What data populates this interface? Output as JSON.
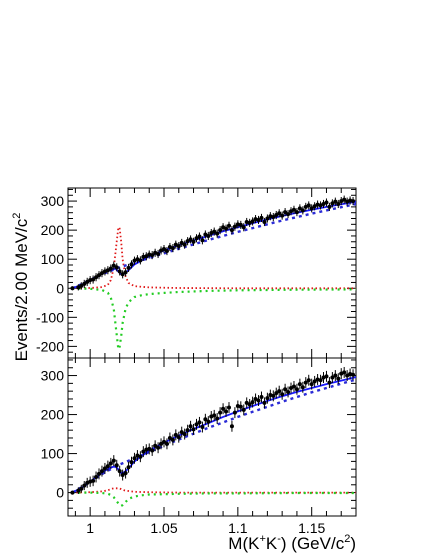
{
  "figure": {
    "ylabel": "Events/2.00 MeV/c",
    "ylabel_sup": "2",
    "xlabel_prefix": "M(K",
    "xlabel_sup1": "+",
    "xlabel_mid": "K",
    "xlabel_sup2": "-",
    "xlabel_suffix": ") (GeV/c",
    "xlabel_sup3": "2",
    "xlabel_close": ")"
  },
  "chart_data": [
    {
      "type": "scatter",
      "panel": "top",
      "xlim": [
        0.985,
        1.18
      ],
      "ylim": [
        -240,
        345
      ],
      "yticks": [
        -200,
        -100,
        0,
        100,
        200,
        300
      ],
      "xticks": [
        1.0,
        1.05,
        1.1,
        1.15
      ],
      "xtick_labels": [],
      "colors": {
        "data": "#000000",
        "total": "#1a1aff",
        "background": "#2b2bd6",
        "signal": "#e01818",
        "interference": "#22cc22"
      },
      "series": [
        {
          "kind": "data",
          "x": [
            0.988,
            0.992,
            0.994,
            0.996,
            0.998,
            1.0,
            1.002,
            1.004,
            1.006,
            1.008,
            1.01,
            1.012,
            1.014,
            1.016,
            1.018,
            1.02,
            1.022,
            1.024,
            1.026,
            1.028,
            1.03,
            1.032,
            1.034,
            1.036,
            1.038,
            1.04,
            1.042,
            1.044,
            1.046,
            1.048,
            1.05,
            1.052,
            1.054,
            1.056,
            1.058,
            1.06,
            1.062,
            1.064,
            1.066,
            1.068,
            1.07,
            1.072,
            1.074,
            1.076,
            1.078,
            1.08,
            1.082,
            1.084,
            1.086,
            1.088,
            1.09,
            1.092,
            1.094,
            1.096,
            1.098,
            1.1,
            1.102,
            1.104,
            1.106,
            1.108,
            1.11,
            1.112,
            1.114,
            1.116,
            1.118,
            1.12,
            1.122,
            1.124,
            1.126,
            1.128,
            1.13,
            1.132,
            1.134,
            1.136,
            1.138,
            1.14,
            1.142,
            1.144,
            1.146,
            1.148,
            1.15,
            1.152,
            1.154,
            1.156,
            1.158,
            1.16,
            1.162,
            1.164,
            1.166,
            1.168,
            1.17,
            1.172,
            1.174,
            1.176,
            1.178
          ],
          "y": [
            0,
            3,
            8,
            15,
            22,
            28,
            30,
            38,
            45,
            52,
            58,
            62,
            68,
            78,
            72,
            58,
            48,
            55,
            70,
            82,
            95,
            100,
            96,
            108,
            110,
            116,
            114,
            122,
            118,
            130,
            135,
            128,
            142,
            138,
            150,
            145,
            156,
            150,
            162,
            168,
            160,
            172,
            178,
            165,
            185,
            180,
            190,
            195,
            188,
            200,
            210,
            205,
            215,
            200,
            212,
            220,
            218,
            210,
            228,
            225,
            230,
            238,
            235,
            242,
            228,
            240,
            248,
            245,
            252,
            258,
            250,
            262,
            255,
            265,
            270,
            262,
            275,
            268,
            280,
            285,
            275,
            282,
            288,
            285,
            290,
            295,
            280,
            292,
            298,
            290,
            300,
            305,
            298,
            302,
            300
          ],
          "err": 14
        },
        {
          "kind": "total_fit",
          "x": [
            0.988,
            0.995,
            1.0,
            1.005,
            1.01,
            1.014,
            1.017,
            1.019,
            1.021,
            1.023,
            1.026,
            1.03,
            1.04,
            1.05,
            1.06,
            1.07,
            1.08,
            1.09,
            1.1,
            1.11,
            1.12,
            1.13,
            1.14,
            1.15,
            1.16,
            1.17,
            1.18
          ],
          "y": [
            0,
            14,
            28,
            42,
            55,
            63,
            68,
            58,
            48,
            50,
            62,
            82,
            110,
            130,
            148,
            165,
            180,
            196,
            210,
            224,
            237,
            249,
            260,
            270,
            280,
            289,
            298
          ]
        },
        {
          "kind": "background_fit",
          "x": [
            0.988,
            0.995,
            1.0,
            1.005,
            1.01,
            1.015,
            1.02,
            1.025,
            1.03,
            1.04,
            1.05,
            1.06,
            1.07,
            1.08,
            1.09,
            1.1,
            1.11,
            1.12,
            1.13,
            1.14,
            1.15,
            1.16,
            1.17,
            1.18
          ],
          "y": [
            0,
            16,
            28,
            40,
            52,
            62,
            72,
            80,
            88,
            104,
            120,
            136,
            151,
            166,
            180,
            194,
            207,
            220,
            233,
            245,
            257,
            268,
            279,
            290
          ]
        },
        {
          "kind": "signal",
          "x": [
            0.988,
            1.0,
            1.008,
            1.012,
            1.014,
            1.016,
            1.018,
            1.019,
            1.0195,
            1.02,
            1.021,
            1.022,
            1.024,
            1.026,
            1.03,
            1.04,
            1.06,
            1.1,
            1.18
          ],
          "y": [
            0,
            1,
            4,
            12,
            28,
            70,
            160,
            205,
            210,
            205,
            160,
            100,
            40,
            18,
            7,
            3,
            1,
            0,
            0
          ]
        },
        {
          "kind": "interference",
          "x": [
            0.988,
            1.0,
            1.008,
            1.012,
            1.014,
            1.016,
            1.018,
            1.019,
            1.0195,
            1.02,
            1.021,
            1.022,
            1.024,
            1.026,
            1.03,
            1.035,
            1.04,
            1.05,
            1.06,
            1.08,
            1.1,
            1.14,
            1.18
          ],
          "y": [
            0,
            -2,
            -6,
            -16,
            -32,
            -72,
            -160,
            -205,
            -210,
            -200,
            -165,
            -120,
            -70,
            -48,
            -30,
            -24,
            -20,
            -16,
            -13,
            -9,
            -7,
            -5,
            -4
          ]
        }
      ]
    },
    {
      "type": "scatter",
      "panel": "bottom",
      "xlim": [
        0.985,
        1.18
      ],
      "ylim": [
        -60,
        345
      ],
      "yticks": [
        0,
        100,
        200,
        300
      ],
      "xticks": [
        1.0,
        1.05,
        1.1,
        1.15
      ],
      "xtick_labels": [
        "1",
        "1.05",
        "1.1",
        "1.15"
      ],
      "colors": {
        "data": "#000000",
        "total": "#1a1aff",
        "background": "#2b2bd6",
        "signal": "#e01818",
        "interference": "#22cc22"
      },
      "series": [
        {
          "kind": "data",
          "x": [
            0.988,
            0.992,
            0.994,
            0.996,
            0.998,
            1.0,
            1.002,
            1.004,
            1.006,
            1.008,
            1.01,
            1.012,
            1.014,
            1.016,
            1.018,
            1.02,
            1.022,
            1.024,
            1.026,
            1.028,
            1.03,
            1.032,
            1.034,
            1.036,
            1.038,
            1.04,
            1.042,
            1.044,
            1.046,
            1.048,
            1.05,
            1.052,
            1.054,
            1.056,
            1.058,
            1.06,
            1.062,
            1.064,
            1.066,
            1.068,
            1.07,
            1.072,
            1.074,
            1.076,
            1.078,
            1.08,
            1.082,
            1.084,
            1.086,
            1.088,
            1.09,
            1.092,
            1.094,
            1.096,
            1.098,
            1.1,
            1.102,
            1.104,
            1.106,
            1.108,
            1.11,
            1.112,
            1.114,
            1.116,
            1.118,
            1.12,
            1.122,
            1.124,
            1.126,
            1.128,
            1.13,
            1.132,
            1.134,
            1.136,
            1.138,
            1.14,
            1.142,
            1.144,
            1.146,
            1.148,
            1.15,
            1.152,
            1.154,
            1.156,
            1.158,
            1.16,
            1.162,
            1.164,
            1.166,
            1.168,
            1.17,
            1.172,
            1.174,
            1.176,
            1.178
          ],
          "y": [
            0,
            5,
            10,
            18,
            25,
            28,
            30,
            40,
            48,
            55,
            62,
            68,
            75,
            82,
            70,
            55,
            45,
            50,
            65,
            78,
            88,
            95,
            92,
            105,
            110,
            112,
            108,
            120,
            115,
            125,
            130,
            125,
            140,
            135,
            148,
            142,
            155,
            150,
            160,
            170,
            162,
            175,
            180,
            168,
            188,
            182,
            195,
            198,
            190,
            205,
            215,
            208,
            218,
            170,
            205,
            222,
            220,
            212,
            230,
            226,
            232,
            240,
            236,
            245,
            230,
            242,
            250,
            248,
            255,
            260,
            252,
            265,
            258,
            268,
            272,
            265,
            278,
            270,
            282,
            288,
            278,
            285,
            290,
            288,
            295,
            298,
            282,
            295,
            300,
            292,
            305,
            308,
            300,
            304,
            302
          ],
          "err": 14
        },
        {
          "kind": "total_fit",
          "x": [
            0.988,
            0.995,
            1.0,
            1.005,
            1.01,
            1.014,
            1.017,
            1.019,
            1.021,
            1.023,
            1.026,
            1.03,
            1.04,
            1.05,
            1.06,
            1.07,
            1.08,
            1.09,
            1.1,
            1.11,
            1.12,
            1.13,
            1.14,
            1.15,
            1.16,
            1.17,
            1.18
          ],
          "y": [
            0,
            14,
            28,
            42,
            56,
            64,
            68,
            60,
            50,
            52,
            62,
            80,
            108,
            128,
            146,
            163,
            178,
            194,
            208,
            222,
            235,
            247,
            258,
            268,
            278,
            287,
            296
          ]
        },
        {
          "kind": "background_fit",
          "x": [
            0.988,
            0.995,
            1.0,
            1.005,
            1.01,
            1.015,
            1.02,
            1.025,
            1.03,
            1.04,
            1.05,
            1.06,
            1.07,
            1.08,
            1.09,
            1.1,
            1.11,
            1.12,
            1.13,
            1.14,
            1.15,
            1.16,
            1.17,
            1.18
          ],
          "y": [
            0,
            16,
            28,
            40,
            52,
            62,
            72,
            80,
            88,
            104,
            120,
            136,
            151,
            166,
            180,
            194,
            207,
            220,
            233,
            245,
            257,
            268,
            279,
            290
          ]
        },
        {
          "kind": "signal",
          "x": [
            0.988,
            1.0,
            1.008,
            1.012,
            1.014,
            1.016,
            1.018,
            1.0195,
            1.021,
            1.023,
            1.026,
            1.03,
            1.04,
            1.06,
            1.1,
            1.18
          ],
          "y": [
            0,
            1,
            3,
            6,
            9,
            11,
            11,
            11,
            9,
            6,
            4,
            2,
            1,
            0,
            0,
            0
          ]
        },
        {
          "kind": "interference",
          "x": [
            0.988,
            1.0,
            1.008,
            1.012,
            1.014,
            1.016,
            1.018,
            1.0195,
            1.021,
            1.022,
            1.024,
            1.026,
            1.03,
            1.035,
            1.04,
            1.05,
            1.06,
            1.08,
            1.1,
            1.14,
            1.18
          ],
          "y": [
            0,
            0,
            -1,
            -3,
            -6,
            -12,
            -22,
            -30,
            -34,
            -32,
            -24,
            -16,
            -10,
            -7,
            -5,
            -4,
            -3,
            -2,
            -2,
            -1,
            -1
          ]
        }
      ]
    }
  ]
}
